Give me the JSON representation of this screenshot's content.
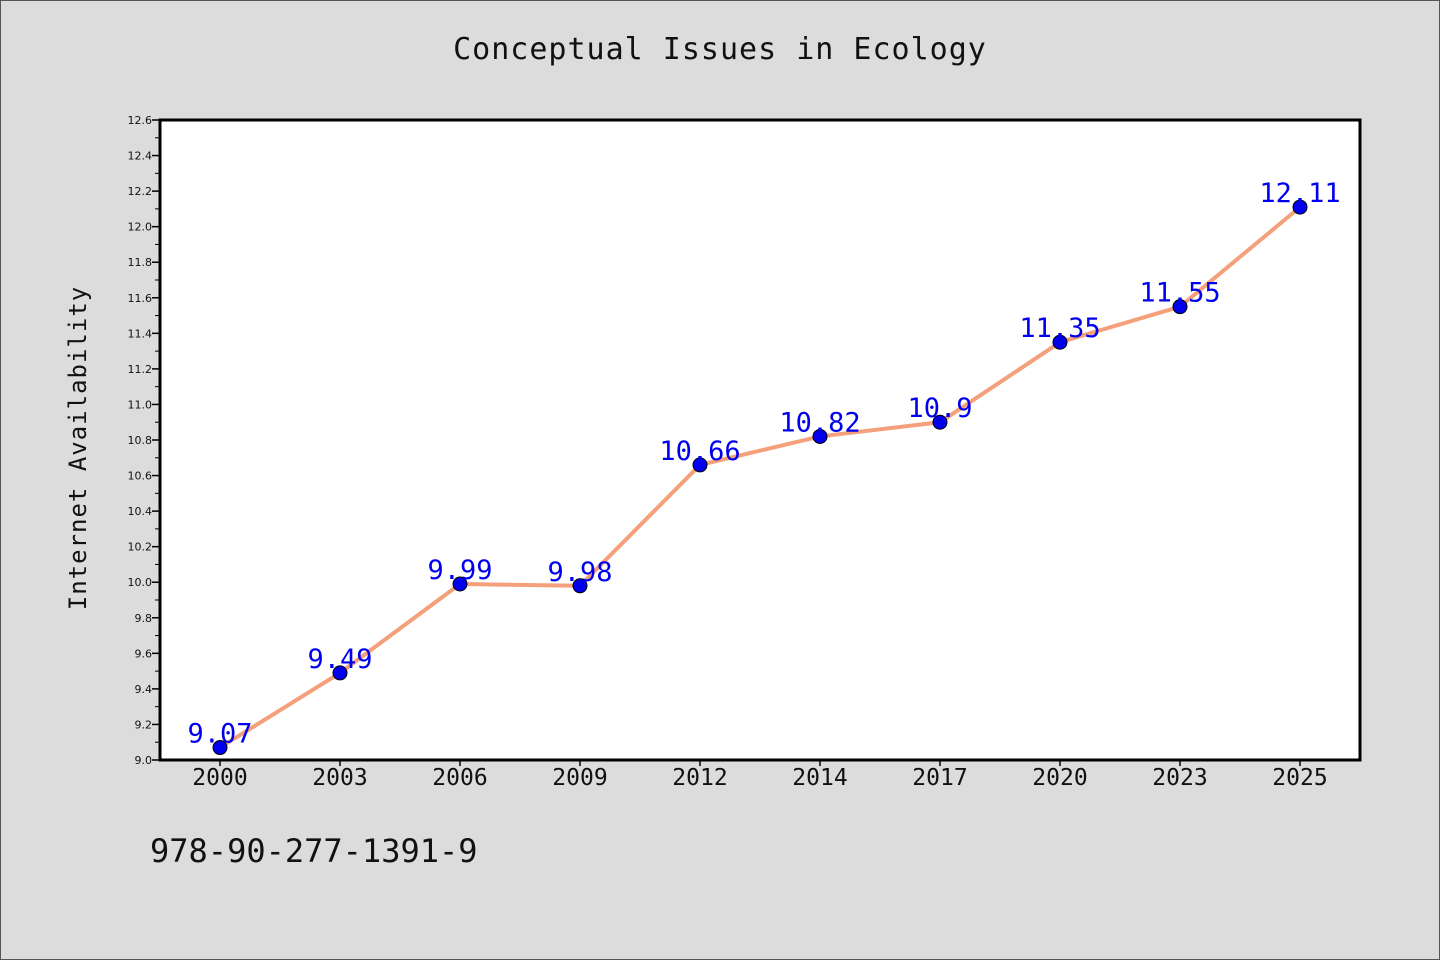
{
  "title": "Conceptual Issues in Ecology",
  "footer_text": "978-90-277-1391-9",
  "chart_data": {
    "type": "line",
    "title": "Conceptual Issues in Ecology",
    "xlabel": "",
    "ylabel": "Internet Availability",
    "categories": [
      "2000",
      "2003",
      "2006",
      "2009",
      "2012",
      "2014",
      "2017",
      "2020",
      "2023",
      "2025"
    ],
    "series": [
      {
        "values": [
          9.07,
          9.49,
          9.99,
          9.98,
          10.66,
          10.82,
          10.9,
          11.35,
          11.55,
          12.11
        ],
        "data_labels": [
          "9.07",
          "9.49",
          "9.99",
          "9.98",
          "10.66",
          "10.82",
          "10.9",
          "11.35",
          "11.55",
          "12.11"
        ],
        "line_color": "#f4a07a",
        "marker_color": "#0000ee",
        "label_color": "#0000ee"
      }
    ],
    "ylim": [
      9.0,
      12.6
    ],
    "y_ticks": [
      "9.0",
      "9.2",
      "9.4",
      "9.6",
      "9.8",
      "10.0",
      "10.2",
      "10.4",
      "10.6",
      "10.8",
      "11.0",
      "11.2",
      "11.4",
      "11.6",
      "11.8",
      "12.0",
      "12.2",
      "12.4",
      "12.6"
    ],
    "grid": false,
    "legend": "none",
    "colors": {
      "background": "#dcdcdc",
      "plot_background": "#ffffff"
    }
  }
}
